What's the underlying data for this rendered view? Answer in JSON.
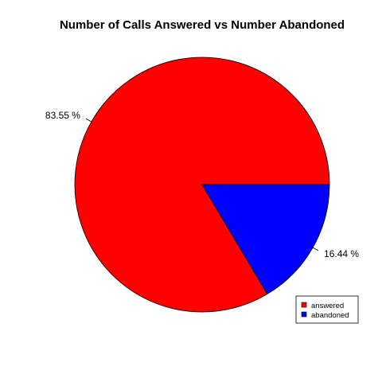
{
  "chart_data": {
    "type": "pie",
    "title": "Number of Calls Answered vs Number Abandoned",
    "slices": [
      {
        "name": "answered",
        "value": 83.55,
        "label": "83.55 %",
        "color": "#ff0000"
      },
      {
        "name": "abandoned",
        "value": 16.44,
        "label": "16.44 %",
        "color": "#0000ff"
      }
    ],
    "legend_position": "bottom-right",
    "start_angle_deg": 0,
    "direction": "counterclockwise"
  }
}
